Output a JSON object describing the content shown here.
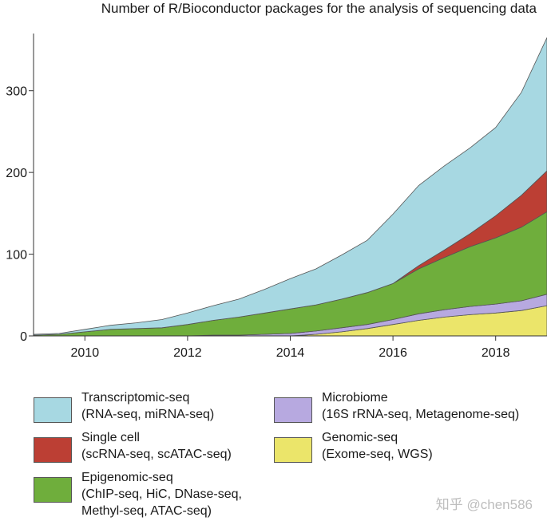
{
  "chart_data": {
    "type": "area",
    "stacked": true,
    "title": "Number of R/Bioconductor packages for the analysis of sequencing data",
    "xlabel": "",
    "ylabel": "",
    "xlim": [
      2009.0,
      2019.0
    ],
    "ylim": [
      0,
      370
    ],
    "x_ticks": [
      "2010",
      "2012",
      "2014",
      "2016",
      "2018"
    ],
    "y_ticks": [
      "0",
      "100",
      "200",
      "300"
    ],
    "x": [
      2009.0,
      2009.5,
      2010.0,
      2010.5,
      2011.0,
      2011.5,
      2012.0,
      2012.5,
      2013.0,
      2013.5,
      2014.0,
      2014.5,
      2015.0,
      2015.5,
      2016.0,
      2016.5,
      2017.0,
      2017.5,
      2018.0,
      2018.5,
      2019.0
    ],
    "series": [
      {
        "name": "Genomic-seq",
        "color": "#ebe56a",
        "values": [
          0,
          0,
          0,
          0,
          0,
          0,
          0,
          0,
          0,
          0,
          0,
          2,
          5,
          9,
          14,
          19,
          23,
          26,
          28,
          31,
          37
        ]
      },
      {
        "name": "Microbiome",
        "color": "#b7a9e0",
        "values": [
          0,
          0,
          0,
          0,
          0,
          0,
          0,
          1,
          1,
          2,
          3,
          4,
          5,
          5,
          6,
          8,
          9,
          10,
          11,
          12,
          14
        ]
      },
      {
        "name": "Epigenomic-seq",
        "color": "#6fae3c",
        "values": [
          1,
          2,
          5,
          8,
          9,
          10,
          14,
          18,
          22,
          26,
          30,
          32,
          35,
          39,
          44,
          55,
          64,
          73,
          81,
          90,
          101
        ]
      },
      {
        "name": "Single cell",
        "color": "#bc3f34",
        "values": [
          0,
          0,
          0,
          0,
          0,
          0,
          0,
          0,
          0,
          0,
          0,
          0,
          0,
          0,
          0,
          4,
          9,
          16,
          27,
          39,
          50
        ]
      },
      {
        "name": "Transcriptomic-seq",
        "color": "#a7d8e2",
        "values": [
          1,
          1,
          3,
          5,
          7,
          10,
          14,
          18,
          22,
          29,
          37,
          44,
          54,
          64,
          85,
          98,
          103,
          105,
          108,
          126,
          163
        ]
      }
    ]
  },
  "legend": {
    "items": [
      {
        "key": "transcriptomic",
        "title": "Transcriptomic-seq",
        "lines": [
          "(RNA-seq, miRNA-seq)"
        ],
        "color": "#a7d8e2"
      },
      {
        "key": "single",
        "title": "Single cell",
        "lines": [
          "(scRNA-seq, scATAC-seq)"
        ],
        "color": "#bc3f34"
      },
      {
        "key": "epigenomic",
        "title": "Epigenomic-seq",
        "lines": [
          "(ChIP-seq, HiC, DNase-seq,",
          "Methyl-seq, ATAC-seq)"
        ],
        "color": "#6fae3c"
      },
      {
        "key": "microbiome",
        "title": "Microbiome",
        "lines": [
          "(16S rRNA-seq, Metagenome-seq)"
        ],
        "color": "#b7a9e0"
      },
      {
        "key": "genomic",
        "title": "Genomic-seq",
        "lines": [
          "(Exome-seq, WGS)"
        ],
        "color": "#ebe56a"
      }
    ]
  },
  "watermark": "知乎 @chen586"
}
